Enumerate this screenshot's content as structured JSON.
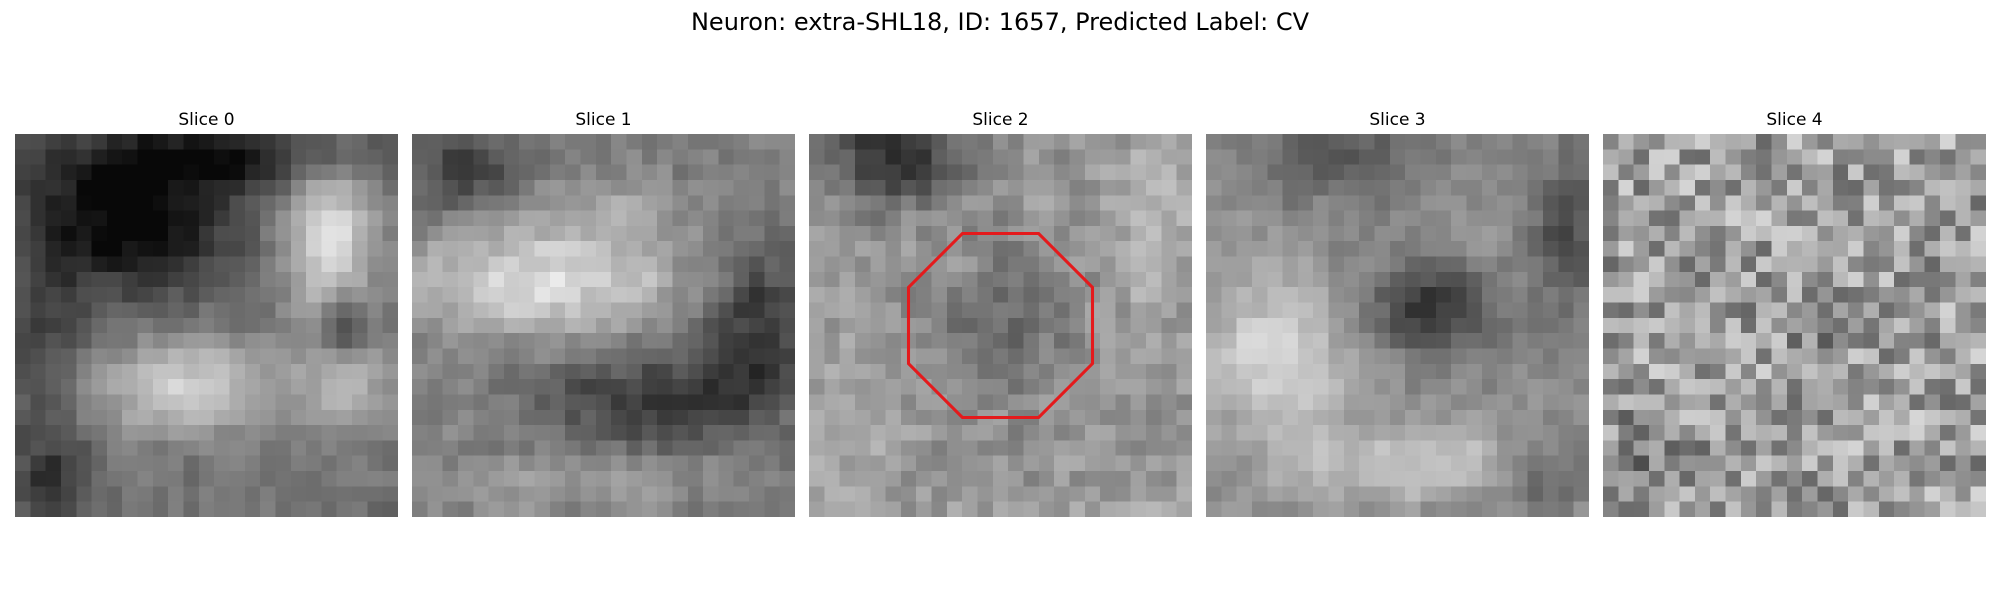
{
  "figure": {
    "title": "Neuron: extra-SHL18, ID: 1657, Predicted Label: CV"
  },
  "panels": [
    {
      "title": "Slice 0"
    },
    {
      "title": "Slice 1"
    },
    {
      "title": "Slice 2"
    },
    {
      "title": "Slice 3"
    },
    {
      "title": "Slice 4"
    }
  ],
  "overlay": {
    "shape": "octagon",
    "color": "#e41a1c",
    "panel_index": 2
  }
}
